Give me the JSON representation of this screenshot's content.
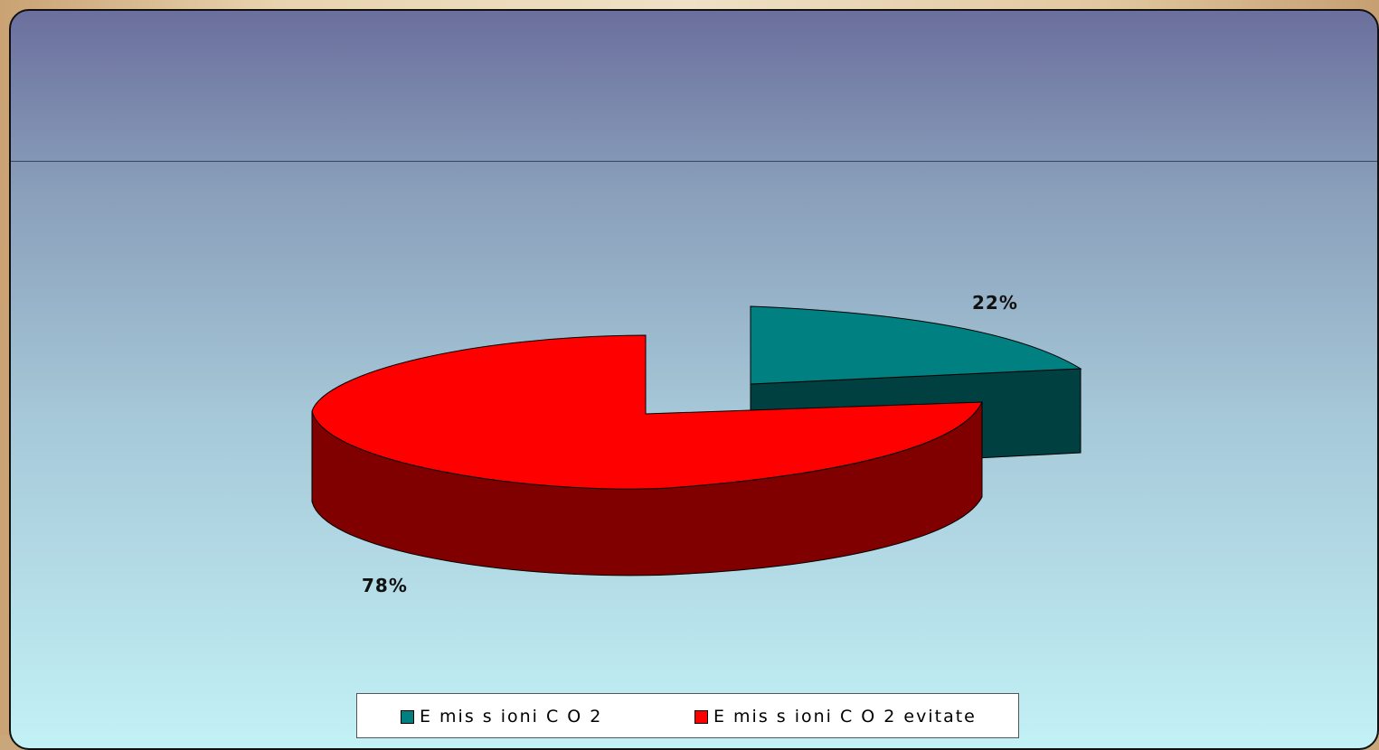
{
  "chart_data": {
    "type": "pie",
    "title": "",
    "slices": [
      {
        "name": "Emissioni CO2",
        "value": 22,
        "label": "22%",
        "color": "#008080",
        "side_color": "#004040"
      },
      {
        "name": "Emissioni CO2 evitate",
        "value": 78,
        "label": "78%",
        "color": "#ff0000",
        "side_color": "#800000"
      }
    ],
    "style": "3d-exploded",
    "legend_position": "bottom"
  },
  "legend": [
    {
      "label": "E mis s ioni C O 2",
      "color": "#008080"
    },
    {
      "label": "E mis s ioni C O 2 evitate",
      "color": "#ff0000"
    }
  ],
  "labels": {
    "slice1": "22%",
    "slice2": "78%"
  }
}
